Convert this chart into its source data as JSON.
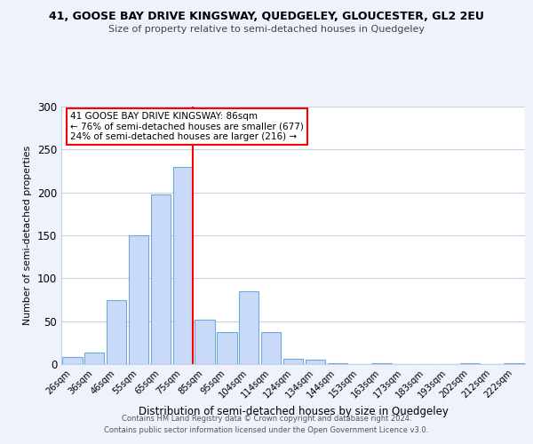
{
  "title": "41, GOOSE BAY DRIVE KINGSWAY, QUEDGELEY, GLOUCESTER, GL2 2EU",
  "subtitle": "Size of property relative to semi-detached houses in Quedgeley",
  "xlabel": "Distribution of semi-detached houses by size in Quedgeley",
  "ylabel": "Number of semi-detached properties",
  "bar_labels": [
    "26sqm",
    "36sqm",
    "46sqm",
    "55sqm",
    "65sqm",
    "75sqm",
    "85sqm",
    "95sqm",
    "104sqm",
    "114sqm",
    "124sqm",
    "134sqm",
    "144sqm",
    "153sqm",
    "163sqm",
    "173sqm",
    "183sqm",
    "193sqm",
    "202sqm",
    "212sqm",
    "222sqm"
  ],
  "bar_values": [
    8,
    13,
    75,
    150,
    198,
    230,
    52,
    37,
    85,
    37,
    6,
    5,
    1,
    0,
    1,
    0,
    0,
    0,
    1,
    0,
    1
  ],
  "bar_color": "#c9daf8",
  "bar_edge_color": "#6fa8dc",
  "reference_line_color": "red",
  "reference_line_idx": 5,
  "annotation_title": "41 GOOSE BAY DRIVE KINGSWAY: 86sqm",
  "annotation_line1": "← 76% of semi-detached houses are smaller (677)",
  "annotation_line2": "24% of semi-detached houses are larger (216) →",
  "annotation_box_color": "white",
  "annotation_box_edge_color": "red",
  "ylim": [
    0,
    300
  ],
  "yticks": [
    0,
    50,
    100,
    150,
    200,
    250,
    300
  ],
  "footer_line1": "Contains HM Land Registry data © Crown copyright and database right 2024.",
  "footer_line2": "Contains public sector information licensed under the Open Government Licence v3.0.",
  "bg_color": "#eef2fb",
  "plot_bg_color": "white",
  "grid_color": "#c8d0e8"
}
